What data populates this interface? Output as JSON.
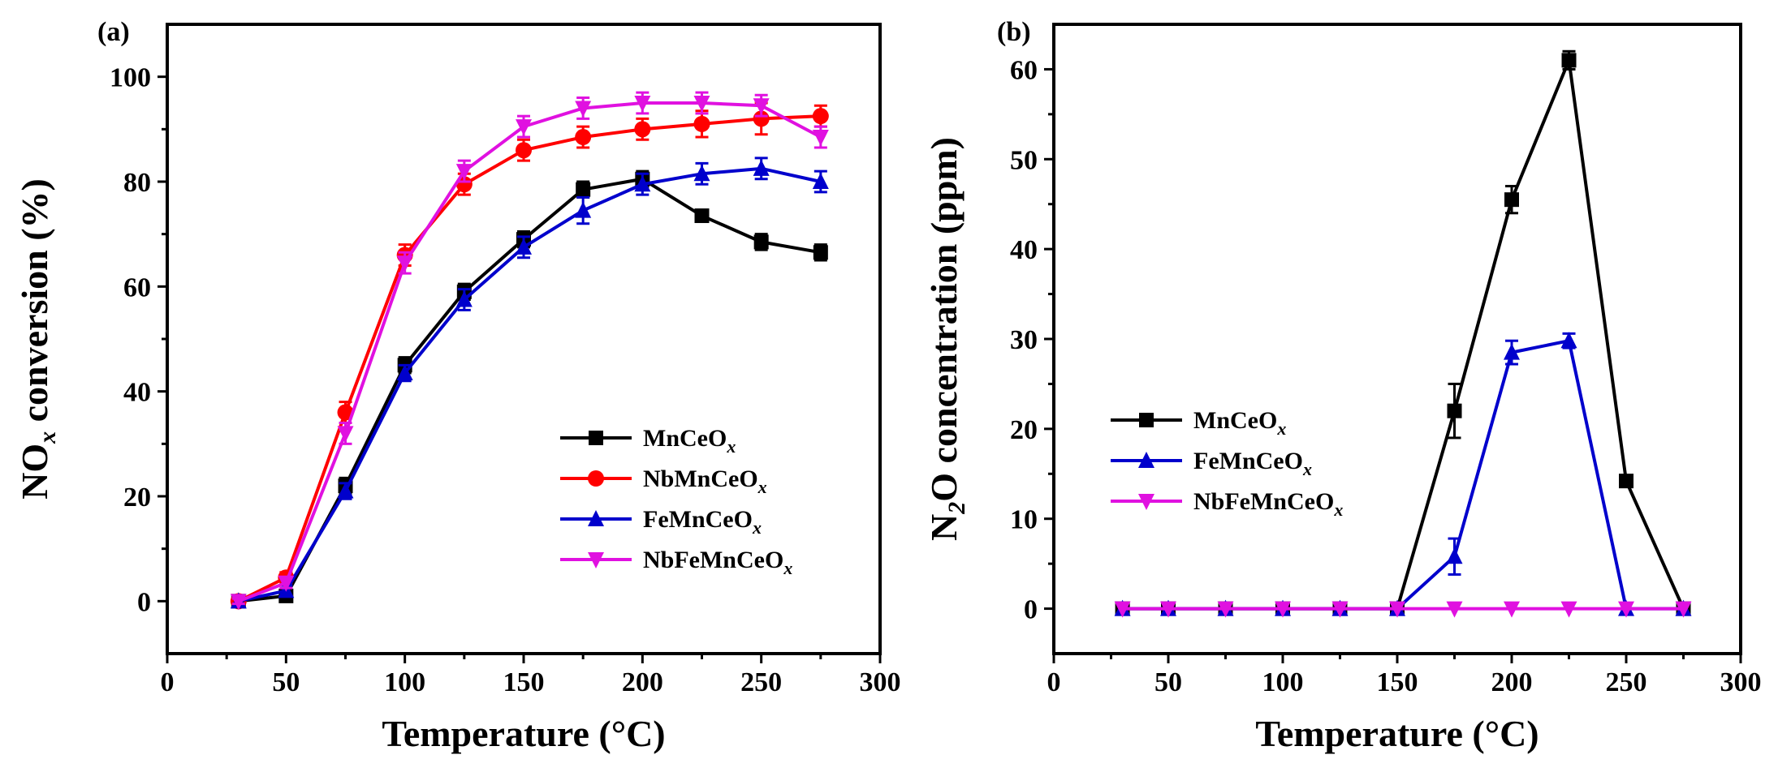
{
  "chart_data": [
    {
      "type": "line",
      "panel_label": "(a)",
      "xlabel": "Temperature (°C)",
      "ylabel_main": "NO",
      "ylabel_sub": "x",
      "ylabel_rest": " conversion (%)",
      "xlim": [
        0,
        300
      ],
      "ylim": [
        -10,
        110
      ],
      "xticks": [
        0,
        50,
        100,
        150,
        200,
        250,
        300
      ],
      "yticks": [
        0,
        20,
        40,
        60,
        80,
        100
      ],
      "legend_position": "center-right",
      "x": [
        30,
        50,
        75,
        100,
        125,
        150,
        175,
        200,
        225,
        250,
        275
      ],
      "series": [
        {
          "name": "MnCeO",
          "sub": "x",
          "color": "#000000",
          "marker": "square",
          "values": [
            0,
            1,
            22,
            45,
            59,
            69,
            78.5,
            80.5,
            73.5,
            68.5,
            66.5
          ],
          "errors": [
            0.5,
            1,
            1.5,
            1.5,
            1.5,
            1.5,
            1.5,
            1.5,
            1,
            1.5,
            1.5
          ]
        },
        {
          "name": "NbMnCeO",
          "sub": "x",
          "color": "#ff0000",
          "marker": "circle",
          "values": [
            0,
            4.5,
            36,
            66,
            79.5,
            86,
            88.5,
            90,
            91,
            92,
            92.5
          ],
          "errors": [
            0.5,
            1,
            2,
            2,
            2,
            2,
            2,
            2,
            2.5,
            3,
            2
          ]
        },
        {
          "name": "FeMnCeO",
          "sub": "x",
          "color": "#0000cc",
          "marker": "triangle-up",
          "values": [
            0,
            2,
            21,
            43.5,
            57.5,
            67.5,
            74.5,
            79.5,
            81.5,
            82.5,
            80
          ],
          "errors": [
            0.5,
            1,
            1.5,
            1.5,
            2,
            2,
            2.5,
            2,
            2,
            2,
            2
          ]
        },
        {
          "name": "NbFeMnCeO",
          "sub": "x",
          "color": "#e011e0",
          "marker": "triangle-down",
          "values": [
            0,
            3.5,
            32,
            64.5,
            82,
            90.5,
            94,
            95,
            95,
            94.5,
            88.5
          ],
          "errors": [
            0.5,
            1,
            2,
            2,
            2,
            2,
            2,
            2,
            2,
            2,
            2
          ]
        }
      ]
    },
    {
      "type": "line",
      "panel_label": "(b)",
      "xlabel": "Temperature (°C)",
      "ylabel_main": "N",
      "ylabel_sub": "2",
      "ylabel_rest": "O concentration (ppm)",
      "xlim": [
        0,
        300
      ],
      "ylim": [
        -5,
        65
      ],
      "xticks": [
        0,
        50,
        100,
        150,
        200,
        250,
        300
      ],
      "yticks": [
        0,
        10,
        20,
        30,
        40,
        50,
        60
      ],
      "legend_position": "center-left",
      "x": [
        30,
        50,
        75,
        100,
        125,
        150,
        175,
        200,
        225,
        250,
        275
      ],
      "series": [
        {
          "name": "MnCeO",
          "sub": "x",
          "color": "#000000",
          "marker": "square",
          "values": [
            0,
            0,
            0,
            0,
            0,
            0,
            22,
            45.5,
            61,
            14.2,
            0
          ],
          "errors": [
            0,
            0,
            0,
            0,
            0,
            0,
            3,
            1.5,
            1,
            0.5,
            0
          ]
        },
        {
          "name": "FeMnCeO",
          "sub": "x",
          "color": "#0000cc",
          "marker": "triangle-up",
          "values": [
            0,
            0,
            0,
            0,
            0,
            0,
            5.8,
            28.5,
            29.8,
            0,
            0
          ],
          "errors": [
            0,
            0,
            0,
            0,
            0,
            0,
            2,
            1.3,
            0.8,
            0,
            0
          ]
        },
        {
          "name": "NbFeMnCeO",
          "sub": "x",
          "color": "#e011e0",
          "marker": "triangle-down",
          "values": [
            0,
            0,
            0,
            0,
            0,
            0,
            0,
            0,
            0,
            0,
            0
          ],
          "errors": [
            0,
            0,
            0,
            0,
            0,
            0,
            0,
            0,
            0,
            0,
            0
          ]
        }
      ]
    }
  ]
}
